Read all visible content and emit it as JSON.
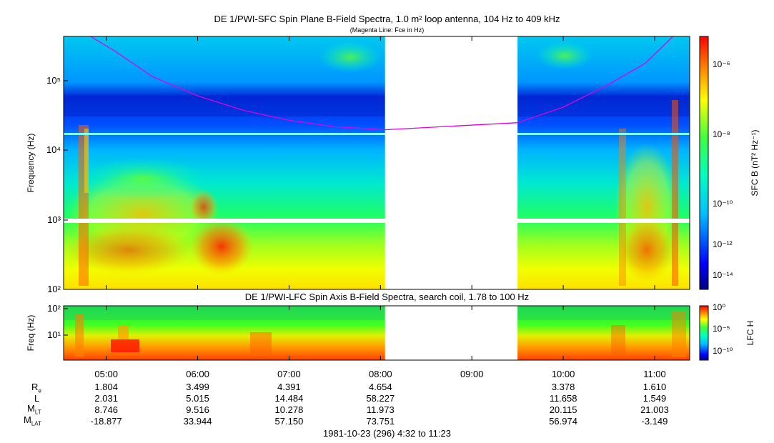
{
  "chart_data": [
    {
      "type": "heatmap",
      "title": "DE 1/PWI-SFC  Spin Plane B-Field Spectra, 1.0 m² loop antenna, 104 Hz to 409 kHz",
      "subtitle": "(Magenta Line: Fce in Hz)",
      "ylabel": "Frequency (Hz)",
      "yscale": "log",
      "ylim": [
        100,
        409000
      ],
      "yticks": [
        100,
        1000,
        10000,
        100000
      ],
      "ytick_labels": [
        "10²",
        "10³",
        "10⁴",
        "10⁵"
      ],
      "colorbar": {
        "label": "SFC B (nT² Hz⁻¹)",
        "scale": "log",
        "range": [
          3e-15,
          1e-05
        ],
        "ticks": [
          1e-06,
          1e-08,
          1e-10,
          1e-12,
          1e-14
        ],
        "tick_labels": [
          "10⁻⁶",
          "10⁻⁸",
          "10⁻¹⁰",
          "10⁻¹²",
          "10⁻¹⁴"
        ]
      },
      "data_gap_hours": [
        8.05,
        9.5
      ],
      "fce_line": {
        "color": "#e000e0",
        "points": [
          [
            4.83,
            409000
          ],
          [
            5.1,
            250000
          ],
          [
            5.5,
            110000
          ],
          [
            6.0,
            58000
          ],
          [
            6.5,
            36000
          ],
          [
            7.0,
            26000
          ],
          [
            7.5,
            21000
          ],
          [
            8.05,
            19000
          ],
          [
            9.5,
            24000
          ],
          [
            10.0,
            40000
          ],
          [
            10.5,
            85000
          ],
          [
            10.9,
            170000
          ],
          [
            11.2,
            409000
          ]
        ]
      }
    },
    {
      "type": "heatmap",
      "title": "DE 1/PWI-LFC  Spin Axis B-Field Spectra, search coil, 1.78 to 100 Hz",
      "ylabel": "Freq (Hz)",
      "yscale": "log",
      "ylim": [
        1.78,
        100
      ],
      "yticks": [
        10,
        100
      ],
      "ytick_labels": [
        "10¹",
        "10²"
      ],
      "colorbar": {
        "label": "LFC H",
        "scale": "log",
        "range": [
          1e-12,
          1
        ],
        "ticks": [
          1,
          1e-05,
          1e-10
        ],
        "tick_labels": [
          "10⁰",
          "10⁻⁵",
          "10⁻¹⁰"
        ]
      },
      "data_gap_hours": [
        8.05,
        9.5
      ]
    }
  ],
  "time_axis": {
    "start_hour": 4.5333,
    "end_hour": 11.3833,
    "ticks": [
      5,
      6,
      7,
      8,
      9,
      10,
      11
    ],
    "tick_labels": [
      "05:00",
      "06:00",
      "07:00",
      "08:00",
      "09:00",
      "10:00",
      "11:00"
    ]
  },
  "ephemeris": {
    "rows": [
      {
        "label": "R",
        "sub": "e",
        "values": [
          "1.804",
          "3.499",
          "4.391",
          "4.654",
          "",
          "3.378",
          "1.610"
        ]
      },
      {
        "label": "L",
        "sub": "",
        "values": [
          "2.031",
          "5.015",
          "14.484",
          "58.227",
          "",
          "11.658",
          "1.549"
        ]
      },
      {
        "label": "M",
        "sub": "LT",
        "values": [
          "8.746",
          "9.516",
          "10.278",
          "11.973",
          "",
          "20.115",
          "21.003"
        ]
      },
      {
        "label": "M",
        "sub": "LAT",
        "values": [
          "-18.877",
          "33.944",
          "57.150",
          "73.751",
          "",
          "56.974",
          "-3.149"
        ]
      }
    ]
  },
  "footer": "1981-10-23 (296) 4:32 to 11:23"
}
